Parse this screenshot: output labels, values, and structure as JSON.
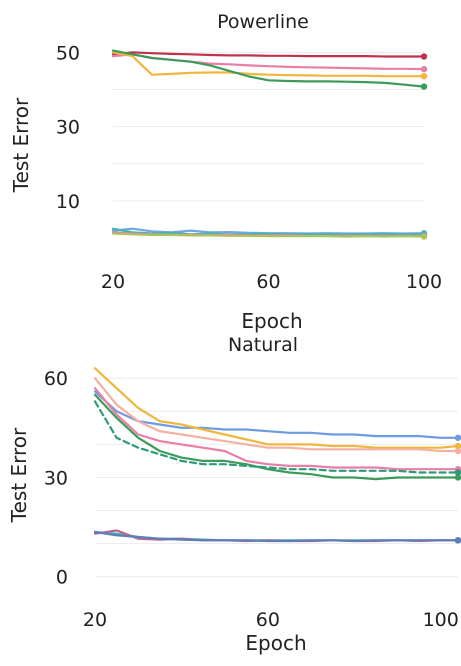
{
  "chart_data": [
    {
      "type": "line",
      "title": "Powerline",
      "xlabel": "Epoch",
      "ylabel": "Test Error",
      "xlim": [
        20,
        100
      ],
      "ylim": [
        0,
        52
      ],
      "xticks": [
        "20",
        "60",
        "100"
      ],
      "xtick_values": [
        20,
        60,
        100
      ],
      "yticks": [
        "10",
        "30",
        "50"
      ],
      "ytick_values": [
        10,
        30,
        50
      ],
      "grid": true,
      "x": [
        20,
        25,
        30,
        35,
        40,
        45,
        50,
        55,
        60,
        65,
        70,
        75,
        80,
        85,
        90,
        95,
        100
      ],
      "series": [
        {
          "color": "#c0334d",
          "dashed": false,
          "values": [
            49.5,
            50.0,
            49.8,
            49.6,
            49.5,
            49.3,
            49.2,
            49.2,
            49.1,
            49.1,
            49.0,
            49.0,
            49.0,
            49.0,
            48.9,
            48.9,
            48.9
          ]
        },
        {
          "color": "#e97fa6",
          "dashed": false,
          "values": [
            49.0,
            49.5,
            48.5,
            48.0,
            47.5,
            47.0,
            46.8,
            46.5,
            46.3,
            46.1,
            46.0,
            45.9,
            45.8,
            45.7,
            45.6,
            45.6,
            45.5
          ]
        },
        {
          "color": "#f0b63e",
          "dashed": false,
          "values": [
            50.0,
            49.0,
            44.0,
            44.2,
            44.5,
            44.6,
            44.6,
            44.2,
            44.0,
            43.9,
            43.8,
            43.7,
            43.7,
            43.7,
            43.6,
            43.6,
            43.6
          ]
        },
        {
          "color": "#3e9a5a",
          "dashed": false,
          "values": [
            50.5,
            49.5,
            48.5,
            48.0,
            47.5,
            46.5,
            45.0,
            43.5,
            42.5,
            42.3,
            42.2,
            42.2,
            42.1,
            42.0,
            41.8,
            41.3,
            40.8
          ]
        },
        {
          "color": "#6fa8e6",
          "dashed": false,
          "values": [
            2.0,
            2.5,
            1.8,
            1.5,
            2.0,
            1.5,
            1.6,
            1.4,
            1.3,
            1.3,
            1.2,
            1.3,
            1.2,
            1.2,
            1.3,
            1.2,
            1.3
          ]
        },
        {
          "color": "#3fb6b0",
          "dashed": false,
          "values": [
            2.5,
            1.5,
            1.2,
            1.4,
            1.0,
            1.2,
            0.9,
            1.0,
            1.1,
            0.9,
            1.0,
            1.0,
            0.9,
            1.0,
            1.0,
            0.9,
            1.0
          ]
        },
        {
          "color": "#e97fa6",
          "dashed": false,
          "values": [
            1.5,
            1.2,
            1.0,
            0.9,
            0.9,
            0.8,
            0.9,
            0.7,
            0.7,
            0.7,
            0.6,
            0.6,
            0.6,
            0.6,
            0.6,
            0.6,
            0.6
          ]
        },
        {
          "color": "#a8c45a",
          "dashed": false,
          "values": [
            1.2,
            1.0,
            0.8,
            0.8,
            0.7,
            0.7,
            0.6,
            0.6,
            0.5,
            0.5,
            0.5,
            0.5,
            0.4,
            0.5,
            0.4,
            0.5,
            0.4
          ]
        }
      ]
    },
    {
      "type": "line",
      "title": "Natural",
      "xlabel": "Epoch",
      "ylabel": "Test Error",
      "xlim": [
        20,
        104
      ],
      "ylim": [
        -1,
        64
      ],
      "xticks": [
        "20",
        "60",
        "100"
      ],
      "xtick_values": [
        20,
        60,
        100
      ],
      "yticks": [
        "0",
        "30",
        "60"
      ],
      "ytick_values": [
        0,
        30,
        60
      ],
      "grid": true,
      "x": [
        20,
        25,
        30,
        35,
        40,
        45,
        50,
        55,
        60,
        65,
        70,
        75,
        80,
        85,
        90,
        95,
        100,
        104
      ],
      "series": [
        {
          "color": "#6c9be0",
          "dashed": false,
          "values": [
            56,
            50,
            47,
            46,
            45,
            45,
            44.5,
            44.5,
            44,
            43.5,
            43.5,
            43,
            43,
            42.5,
            42.5,
            42.5,
            42,
            42
          ]
        },
        {
          "color": "#f0b63e",
          "dashed": false,
          "values": [
            63,
            57,
            51,
            47,
            46,
            44.5,
            43,
            41.5,
            40,
            40,
            40,
            39.5,
            39.5,
            39,
            39,
            39,
            39,
            39.5
          ]
        },
        {
          "color": "#f4b0a0",
          "dashed": false,
          "values": [
            60,
            52,
            47,
            44,
            43,
            42,
            41,
            40,
            39,
            39,
            38.5,
            38.5,
            38.5,
            38.5,
            38.5,
            38.5,
            38,
            38
          ]
        },
        {
          "color": "#e97fa6",
          "dashed": false,
          "values": [
            57,
            49,
            43,
            41,
            40,
            39,
            38,
            35,
            34,
            33.5,
            33.5,
            33,
            33,
            33,
            32.5,
            32.5,
            32.5,
            32.5
          ]
        },
        {
          "color": "#3e9a5a",
          "dashed": false,
          "values": [
            55,
            48,
            42,
            38,
            36,
            35,
            35,
            34,
            32.5,
            31.5,
            31,
            30,
            30,
            29.5,
            30,
            30,
            30,
            30
          ]
        },
        {
          "color": "#2e9a7a",
          "dashed": true,
          "values": [
            53,
            42,
            39,
            37,
            35,
            34,
            34,
            33.5,
            33,
            32.5,
            32.5,
            32,
            32,
            32,
            32,
            31.5,
            31.5,
            31.5
          ]
        },
        {
          "color": "#3fb6b0",
          "dashed": false,
          "values": [
            13.5,
            13,
            12,
            11.5,
            11.5,
            11.2,
            11,
            11,
            11,
            11,
            11,
            11,
            11,
            11,
            11,
            11,
            11,
            11
          ]
        },
        {
          "color": "#c06090",
          "dashed": false,
          "values": [
            13,
            14,
            11.5,
            11.2,
            11.5,
            11,
            11,
            10.8,
            11,
            10.8,
            10.8,
            11,
            10.8,
            10.8,
            11,
            10.8,
            11,
            11
          ]
        },
        {
          "color": "#5b7fb8",
          "dashed": false,
          "values": [
            13.5,
            12.5,
            12,
            11.5,
            11.2,
            11,
            11,
            11,
            10.8,
            10.8,
            11,
            11,
            10.8,
            11,
            11,
            11,
            11,
            11
          ]
        }
      ]
    }
  ]
}
